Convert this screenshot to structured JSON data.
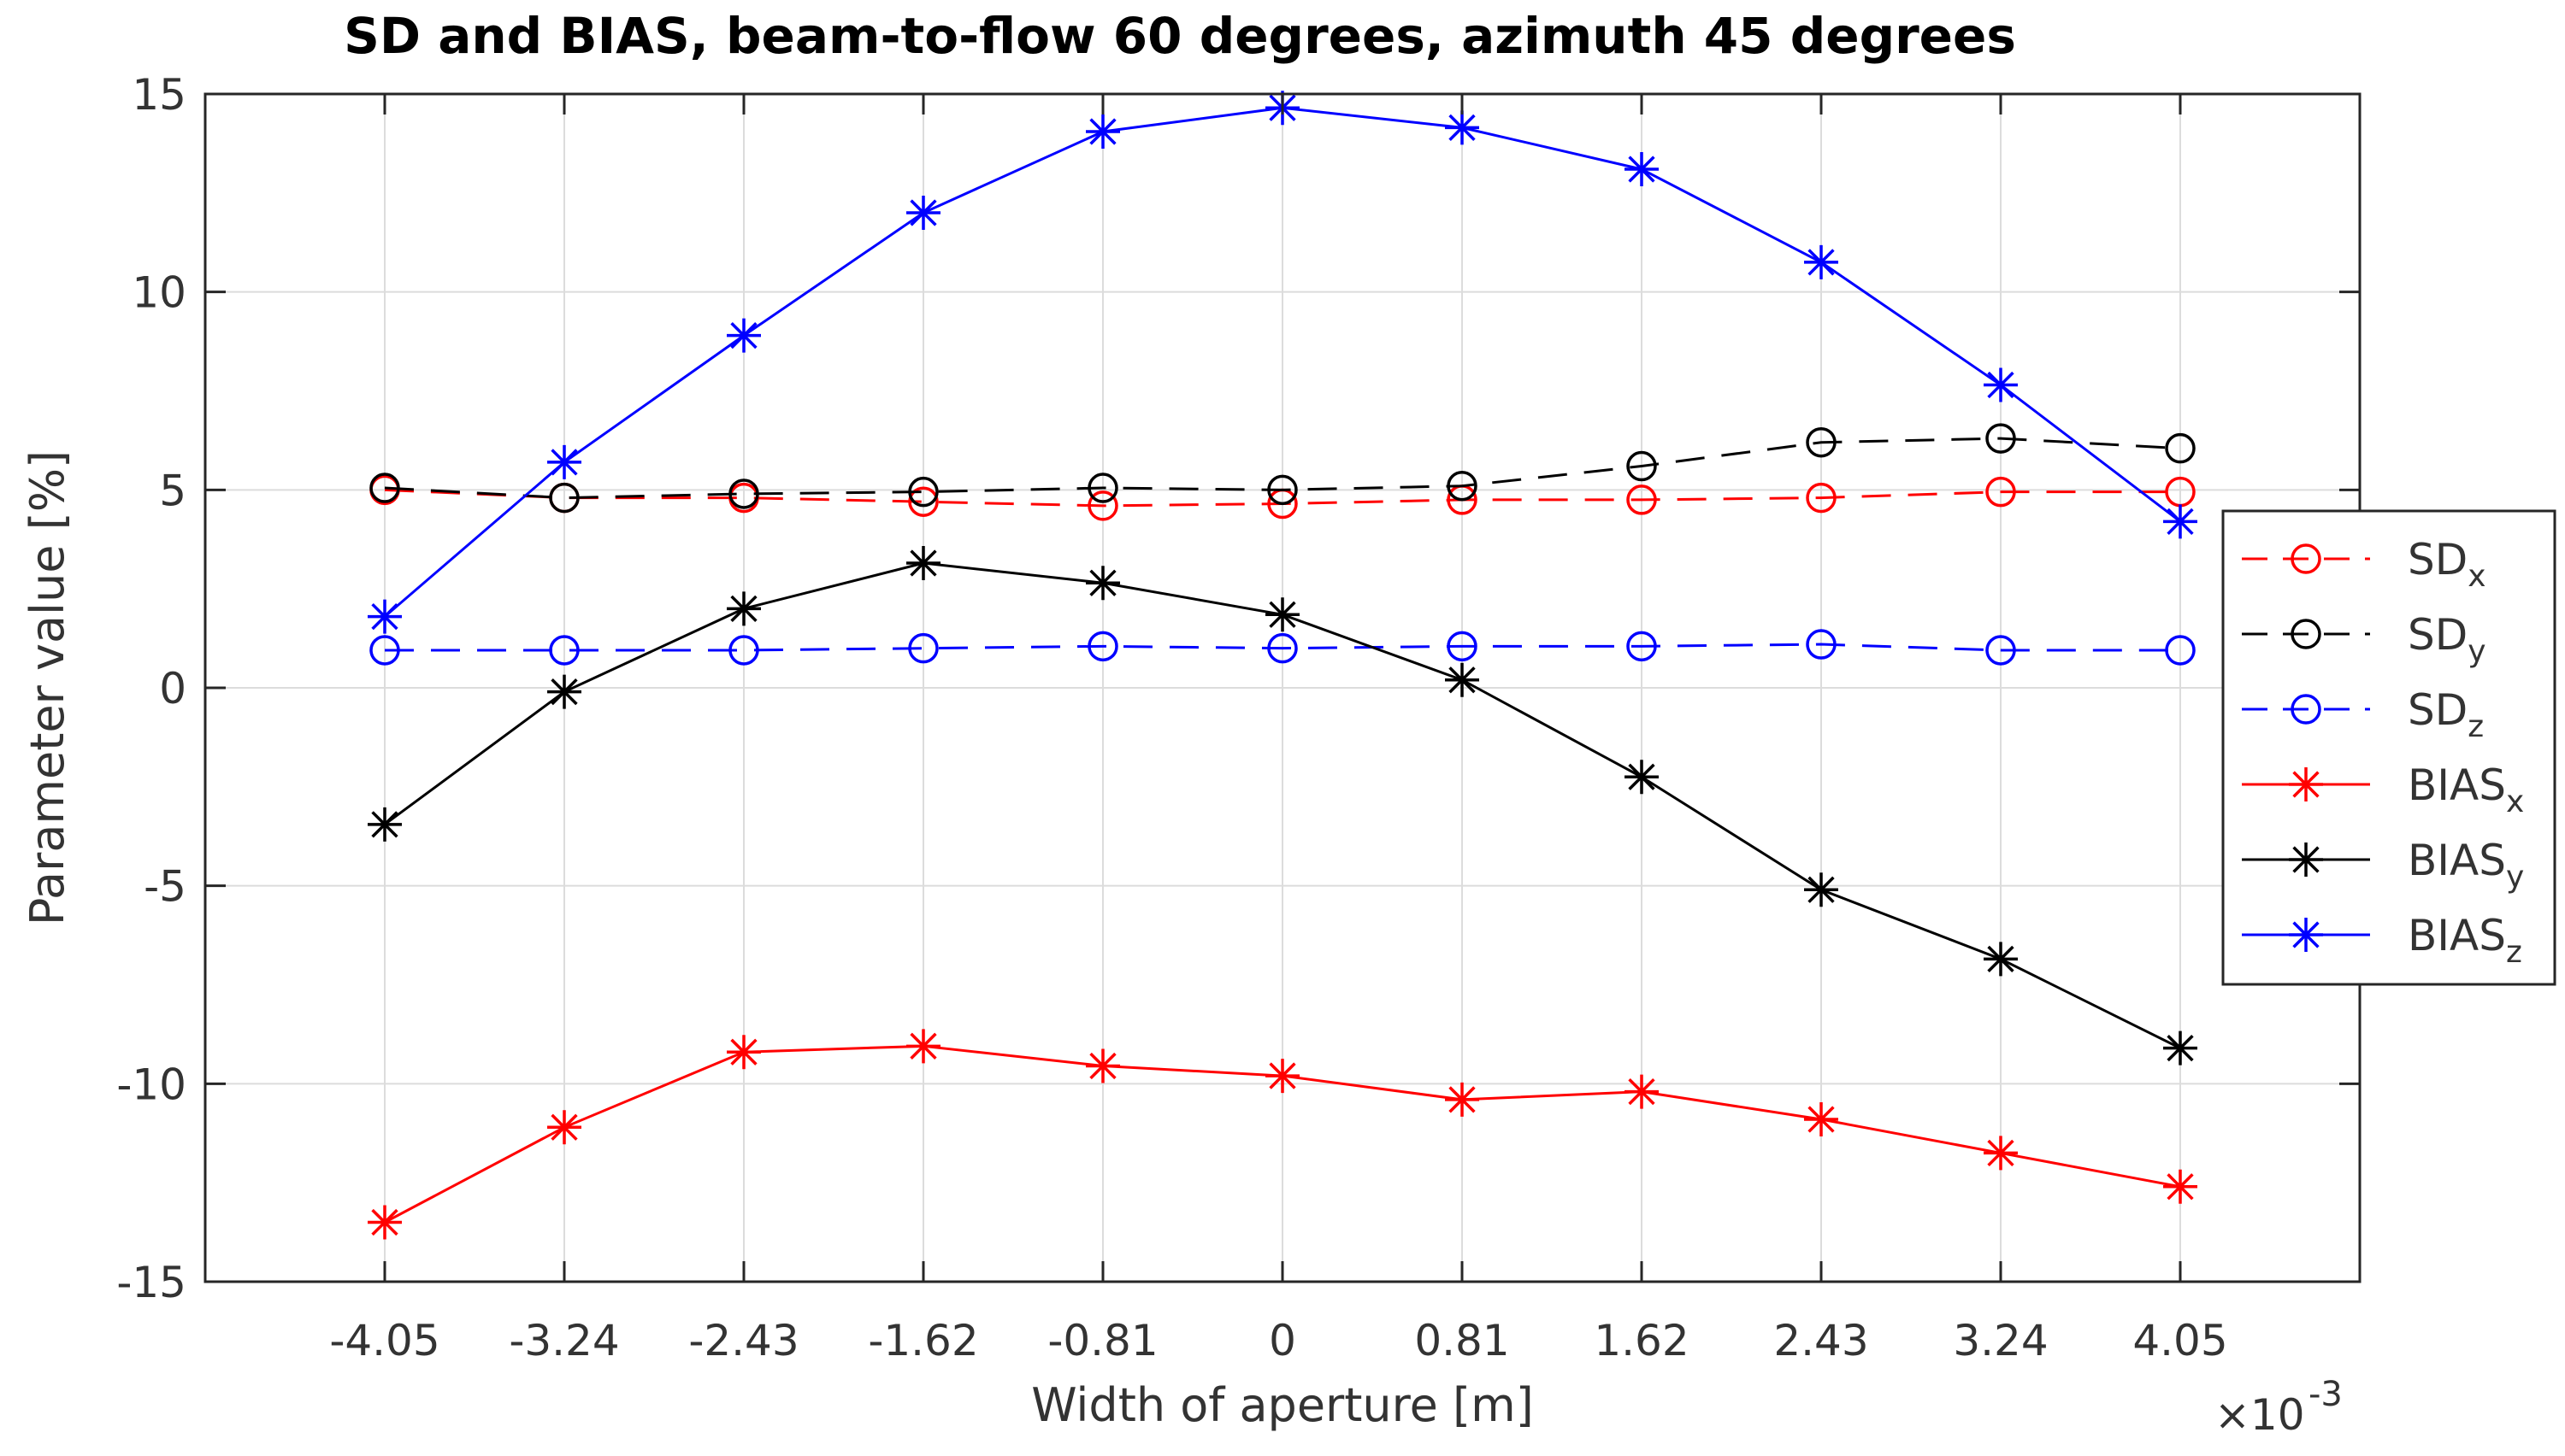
{
  "chart_data": {
    "type": "line",
    "title": "SD and BIAS, beam-to-flow 60 degrees, azimuth 45 degrees",
    "xlabel": "Width of aperture [m]",
    "ylabel": "Parameter value [%]",
    "x_exponent_base": "×10",
    "x_exponent_power": "-3",
    "x": [
      -4.05,
      -3.24,
      -2.43,
      -1.62,
      -0.81,
      0,
      0.81,
      1.62,
      2.43,
      3.24,
      4.05
    ],
    "x_tick_labels": [
      "-4.05",
      "-3.24",
      "-2.43",
      "-1.62",
      "-0.81",
      "0",
      "0.81",
      "1.62",
      "2.43",
      "3.24",
      "4.05"
    ],
    "xlim": [
      -4.86,
      4.86
    ],
    "ylim": [
      -15,
      15
    ],
    "y_ticks": [
      -15,
      -10,
      -5,
      0,
      5,
      10,
      15
    ],
    "y_tick_labels": [
      "-15",
      "-10",
      "-5",
      "0",
      "5",
      "10",
      "15"
    ],
    "grid": true,
    "legend_position": "right-outside-middle",
    "series": [
      {
        "name": "SD",
        "subscript": "x",
        "color": "#ff0000",
        "line": "dashed",
        "marker": "circle",
        "values": [
          5.0,
          4.8,
          4.8,
          4.7,
          4.6,
          4.65,
          4.75,
          4.75,
          4.8,
          4.95,
          4.95
        ]
      },
      {
        "name": "SD",
        "subscript": "y",
        "color": "#000000",
        "line": "dashed",
        "marker": "circle",
        "values": [
          5.05,
          4.8,
          4.9,
          4.95,
          5.05,
          5.0,
          5.1,
          5.6,
          6.2,
          6.3,
          6.05
        ]
      },
      {
        "name": "SD",
        "subscript": "z",
        "color": "#0000ff",
        "line": "dashed",
        "marker": "circle",
        "values": [
          0.95,
          0.95,
          0.95,
          1.0,
          1.05,
          1.0,
          1.05,
          1.05,
          1.1,
          0.95,
          0.95
        ]
      },
      {
        "name": "BIAS",
        "subscript": "x",
        "color": "#ff0000",
        "line": "solid",
        "marker": "star",
        "values": [
          -13.5,
          -11.1,
          -9.2,
          -9.05,
          -9.55,
          -9.8,
          -10.4,
          -10.2,
          -10.9,
          -11.75,
          -12.6
        ]
      },
      {
        "name": "BIAS",
        "subscript": "y",
        "color": "#000000",
        "line": "solid",
        "marker": "star",
        "values": [
          -3.45,
          -0.1,
          2.0,
          3.15,
          2.65,
          1.85,
          0.2,
          -2.25,
          -5.1,
          -6.85,
          -9.1
        ]
      },
      {
        "name": "BIAS",
        "subscript": "z",
        "color": "#0000ff",
        "line": "solid",
        "marker": "star",
        "values": [
          1.8,
          5.7,
          8.9,
          12.0,
          14.05,
          14.65,
          14.15,
          13.1,
          10.75,
          7.65,
          4.2
        ]
      }
    ]
  }
}
